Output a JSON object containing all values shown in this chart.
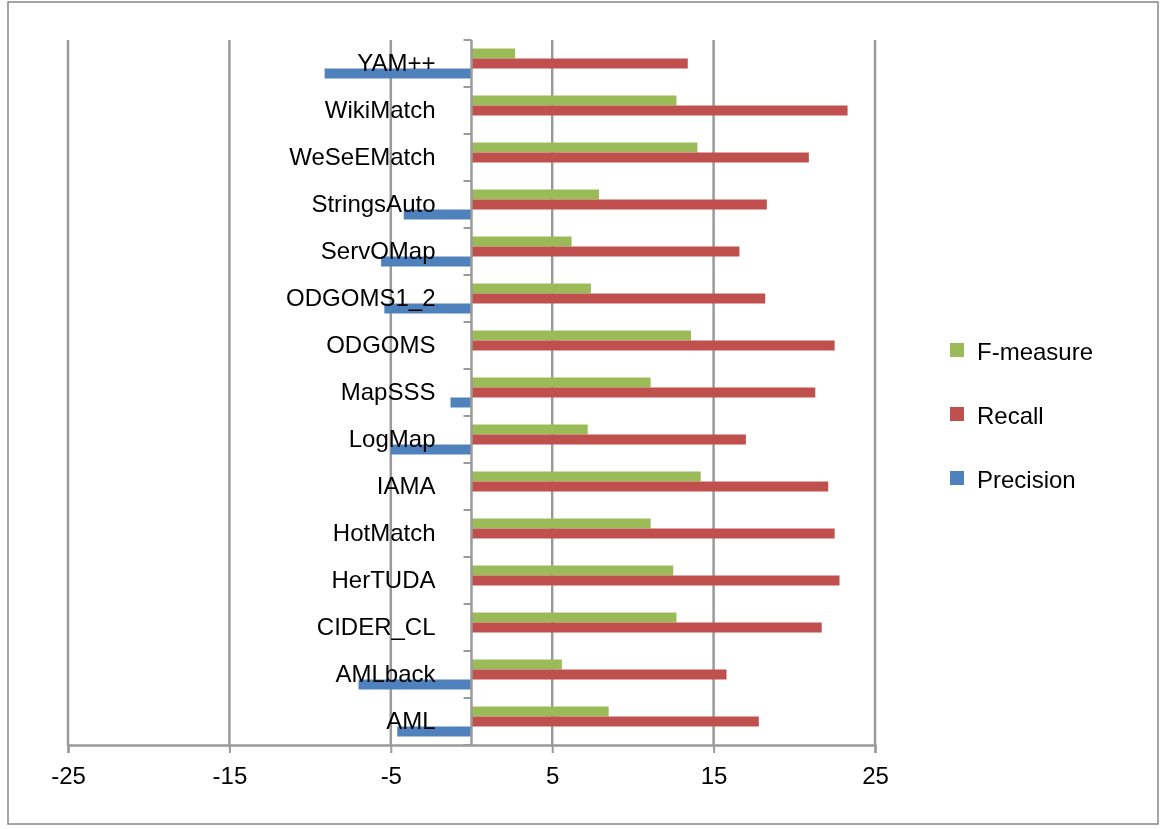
{
  "chart_data": {
    "type": "bar",
    "orientation": "horizontal",
    "categories": [
      "YAM++",
      "WikiMatch",
      "WeSeEMatch",
      "StringsAuto",
      "ServOMap",
      "ODGOMS1_2",
      "ODGOMS",
      "MapSSS",
      "LogMap",
      "IAMA",
      "HotMatch",
      "HerTUDA",
      "CIDER_CL",
      "AMLback",
      "AML"
    ],
    "series": [
      {
        "name": "F-measure",
        "color": "#9bbb59",
        "values": [
          2.7,
          12.7,
          14.0,
          7.9,
          6.2,
          7.4,
          13.6,
          11.1,
          7.2,
          14.2,
          11.1,
          12.5,
          12.7,
          5.6,
          8.5
        ]
      },
      {
        "name": "Recall",
        "color": "#c0504d",
        "values": [
          13.4,
          23.3,
          20.9,
          18.3,
          16.6,
          18.2,
          22.5,
          21.3,
          17.0,
          22.1,
          22.5,
          22.8,
          21.7,
          15.8,
          17.8
        ]
      },
      {
        "name": "Precision",
        "color": "#4f81bd",
        "values": [
          -9.1,
          0,
          0,
          -4.2,
          -5.6,
          -5.4,
          0,
          -1.3,
          -5.0,
          0,
          0,
          0,
          0,
          -7.0,
          -4.6
        ]
      }
    ],
    "xlim": [
      -25,
      25
    ],
    "xticks": [
      -25,
      -15,
      -5,
      5,
      15,
      25
    ],
    "grid": "x",
    "legend": "right"
  }
}
